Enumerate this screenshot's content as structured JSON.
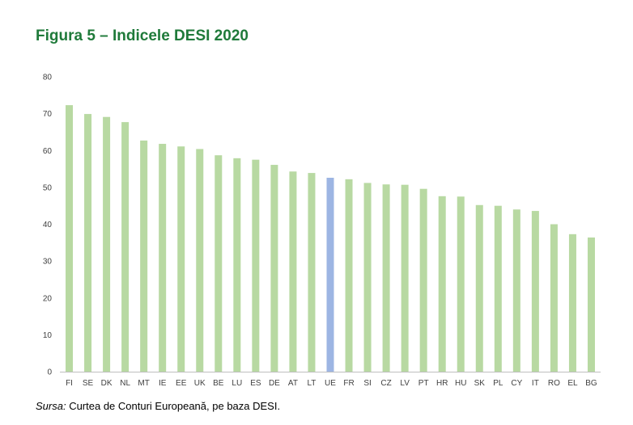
{
  "title": "Figura 5 – Indicele DESI 2020",
  "source": {
    "label": "Sursa:",
    "text": " Curtea de Conturi Europeană, pe baza DESI."
  },
  "colors": {
    "bar": "#b8d9a2",
    "highlight": "#9db5e3",
    "axis": "#bfbfbf",
    "title": "#1f7a3a"
  },
  "chart_data": {
    "type": "bar",
    "title": "",
    "xlabel": "",
    "ylabel": "",
    "ylim": [
      0,
      80
    ],
    "yticks": [
      0,
      10,
      20,
      30,
      40,
      50,
      60,
      70,
      80
    ],
    "grid": false,
    "highlight_category": "UE",
    "categories": [
      "FI",
      "SE",
      "DK",
      "NL",
      "MT",
      "IE",
      "EE",
      "UK",
      "BE",
      "LU",
      "ES",
      "DE",
      "AT",
      "LT",
      "UE",
      "FR",
      "SI",
      "CZ",
      "LV",
      "PT",
      "HR",
      "HU",
      "SK",
      "PL",
      "CY",
      "IT",
      "RO",
      "EL",
      "BG"
    ],
    "values": [
      72.3,
      69.9,
      69.1,
      67.7,
      62.7,
      61.8,
      61.1,
      60.4,
      58.7,
      57.9,
      57.5,
      56.1,
      54.3,
      53.9,
      52.6,
      52.2,
      51.2,
      50.8,
      50.7,
      49.6,
      47.6,
      47.5,
      45.2,
      45.0,
      44.0,
      43.6,
      40.0,
      37.3,
      36.4
    ]
  }
}
